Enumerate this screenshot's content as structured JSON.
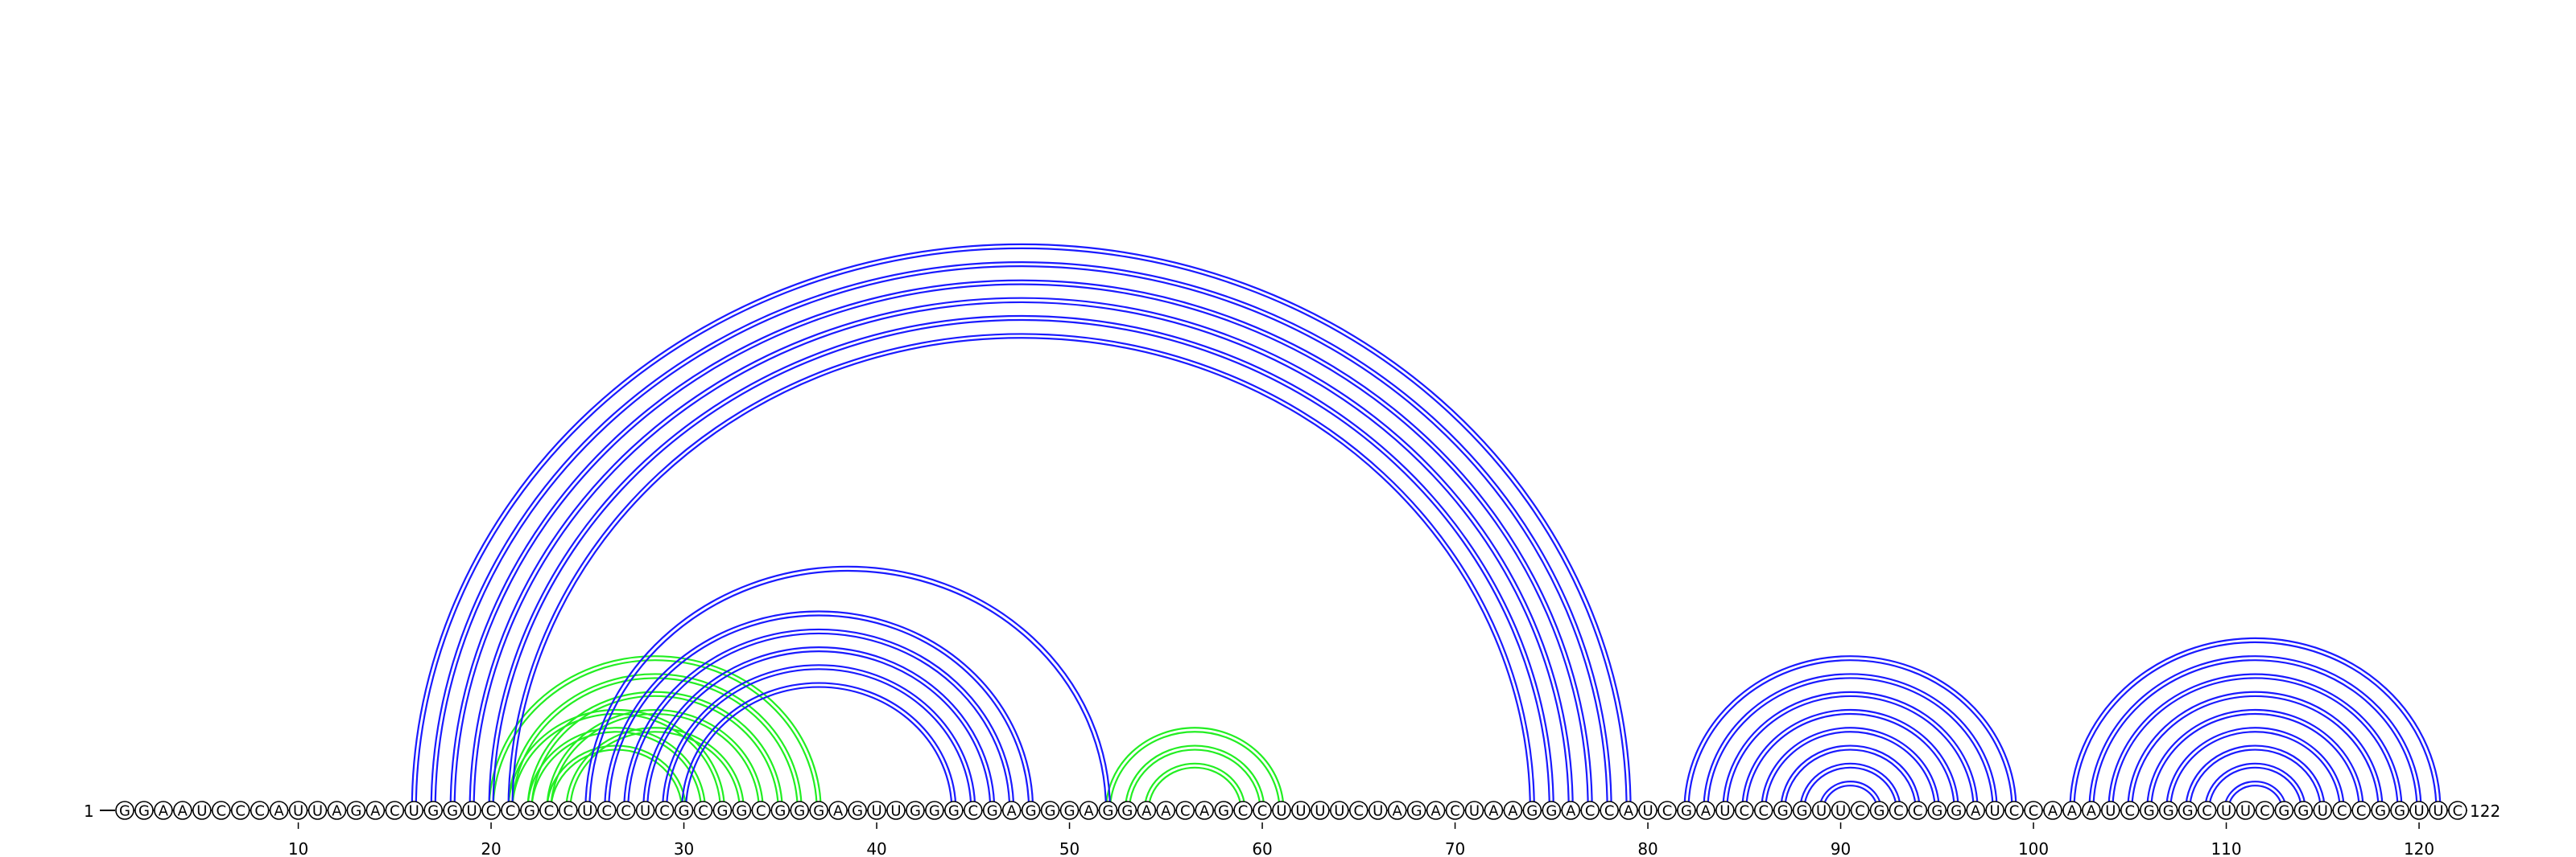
{
  "sequence": "GGAAUCCCAUUAGACUGGUCCGCCUCCUCGCGGCGGGAGUUGGGCGAGGGAGGAACAGCCUUUUCUAGACUAAGGACCAUCGAUCCGGUUCGCCGGAUCCAAAUCGGGCUUCGGUCCGGUUC",
  "start_label": "1",
  "end_label": "122",
  "ticks": [
    10,
    20,
    30,
    40,
    50,
    60,
    70,
    80,
    90,
    100,
    110,
    120
  ],
  "colors": {
    "primary": "#1a1aff",
    "alternative": "#22ee22",
    "backbone": "#000000",
    "nucleotide_fill": "#ffffff"
  },
  "pairs_primary": [
    [
      16,
      79
    ],
    [
      17,
      78
    ],
    [
      18,
      77
    ],
    [
      19,
      76
    ],
    [
      20,
      75
    ],
    [
      21,
      74
    ],
    [
      25,
      52
    ],
    [
      26,
      48
    ],
    [
      27,
      47
    ],
    [
      28,
      46
    ],
    [
      29,
      45
    ],
    [
      30,
      44
    ],
    [
      82,
      99
    ],
    [
      83,
      98
    ],
    [
      84,
      97
    ],
    [
      85,
      96
    ],
    [
      86,
      95
    ],
    [
      87,
      94
    ],
    [
      88,
      93
    ],
    [
      89,
      92
    ],
    [
      102,
      121
    ],
    [
      103,
      120
    ],
    [
      104,
      119
    ],
    [
      105,
      118
    ],
    [
      106,
      117
    ],
    [
      107,
      116
    ],
    [
      108,
      115
    ],
    [
      109,
      114
    ],
    [
      110,
      113
    ]
  ],
  "pairs_alternative": [
    [
      20,
      37
    ],
    [
      21,
      36
    ],
    [
      22,
      35
    ],
    [
      23,
      34
    ],
    [
      24,
      33
    ],
    [
      21,
      32
    ],
    [
      22,
      31
    ],
    [
      23,
      30
    ],
    [
      52,
      61
    ],
    [
      53,
      60
    ],
    [
      54,
      59
    ]
  ]
}
